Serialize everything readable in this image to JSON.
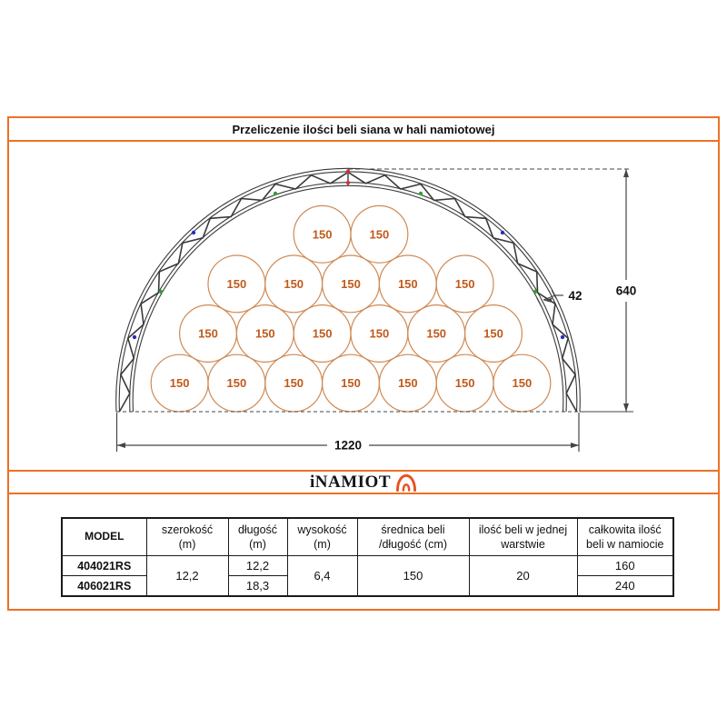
{
  "page": {
    "title": "Przeliczenie ilości beli siana w hali namiotowej"
  },
  "logo": {
    "text": "iNAMIOT"
  },
  "colors": {
    "frame": "#ED7124",
    "logo_icon": "#E8511E",
    "bale_stroke": "#CF8A55",
    "bale_text": "#C05A1A",
    "truss": "#3a3a3a",
    "dim_line": "#444444",
    "marker_red": "#D93030",
    "marker_green": "#2FA12F",
    "marker_blue": "#2B2BC4"
  },
  "diagram": {
    "bale_label": "150",
    "bale_rows_top_to_bottom": [
      2,
      5,
      6,
      7
    ],
    "total_bales_in_layer": 20,
    "dimensions": {
      "truss_depth_cm": "42",
      "inner_height_cm": "640",
      "span_cm": "1220"
    }
  },
  "table": {
    "headers": [
      {
        "line1": "MODEL",
        "line2": ""
      },
      {
        "line1": "szerokość",
        "line2": "(m)"
      },
      {
        "line1": "długość",
        "line2": "(m)"
      },
      {
        "line1": "wysokość",
        "line2": "(m)"
      },
      {
        "line1": "średnica beli",
        "line2": "/długość (cm)"
      },
      {
        "line1": "ilość beli w jednej",
        "line2": "warstwie"
      },
      {
        "line1": "całkowita ilość",
        "line2": "beli w namiocie"
      }
    ],
    "models": [
      "404021RS",
      "406021RS"
    ],
    "szerokosc_m": "12,2",
    "dlugosc_m": [
      "12,2",
      "18,3"
    ],
    "wysokosc_m": "6,4",
    "srednica_beli_cm": "150",
    "ilosc_beli_w_warstwie": "20",
    "calkowita_ilosc": [
      "160",
      "240"
    ]
  }
}
